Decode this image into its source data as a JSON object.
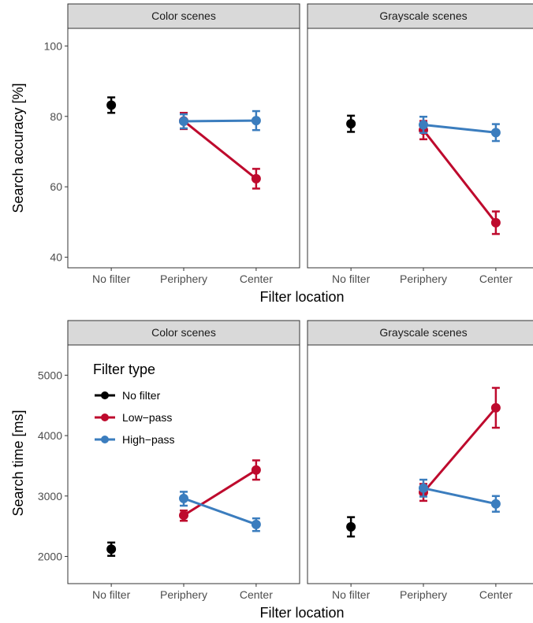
{
  "colors": {
    "no_filter": "#000000",
    "low_pass": "#BE0A2D",
    "high_pass": "#3B7DBE",
    "strip_bg": "#D9D9D9",
    "panel_border": "#333333"
  },
  "legend": {
    "title": "Filter type",
    "items": [
      {
        "label": "No filter",
        "color": "#000000"
      },
      {
        "label": "Low−pass",
        "color": "#BE0A2D"
      },
      {
        "label": "High−pass",
        "color": "#3B7DBE"
      }
    ]
  },
  "chart_data": [
    {
      "type": "line",
      "title": "",
      "xlabel": "Filter location",
      "ylabel": "Search accuracy [%]",
      "categories": [
        "No filter",
        "Periphery",
        "Center"
      ],
      "ylim": [
        37,
        105
      ],
      "yticks": [
        "40",
        "60",
        "80",
        "100"
      ],
      "facets": [
        {
          "label": "Color scenes",
          "series": [
            {
              "name": "No filter",
              "color": "#000000",
              "points": [
                {
                  "x": "No filter",
                  "y": 83.2,
                  "lo": 81.0,
                  "hi": 85.4
                }
              ]
            },
            {
              "name": "Low−pass",
              "color": "#BE0A2D",
              "points": [
                {
                  "x": "Periphery",
                  "y": 78.7,
                  "lo": 76.4,
                  "hi": 81.0
                },
                {
                  "x": "Center",
                  "y": 62.3,
                  "lo": 59.5,
                  "hi": 65.1
                }
              ]
            },
            {
              "name": "High−pass",
              "color": "#3B7DBE",
              "points": [
                {
                  "x": "Periphery",
                  "y": 78.6,
                  "lo": 76.6,
                  "hi": 80.6
                },
                {
                  "x": "Center",
                  "y": 78.8,
                  "lo": 76.1,
                  "hi": 81.5
                }
              ]
            }
          ]
        },
        {
          "label": "Grayscale scenes",
          "series": [
            {
              "name": "No filter",
              "color": "#000000",
              "points": [
                {
                  "x": "No filter",
                  "y": 77.9,
                  "lo": 75.6,
                  "hi": 80.2
                }
              ]
            },
            {
              "name": "Low−pass",
              "color": "#BE0A2D",
              "points": [
                {
                  "x": "Periphery",
                  "y": 76.1,
                  "lo": 73.5,
                  "hi": 78.7
                },
                {
                  "x": "Center",
                  "y": 49.8,
                  "lo": 46.6,
                  "hi": 53.0
                }
              ]
            },
            {
              "name": "High−pass",
              "color": "#3B7DBE",
              "points": [
                {
                  "x": "Periphery",
                  "y": 77.6,
                  "lo": 75.3,
                  "hi": 79.9
                },
                {
                  "x": "Center",
                  "y": 75.4,
                  "lo": 73.0,
                  "hi": 77.8
                }
              ]
            }
          ]
        }
      ]
    },
    {
      "type": "line",
      "title": "",
      "xlabel": "Filter location",
      "ylabel": "Search time [ms]",
      "categories": [
        "No filter",
        "Periphery",
        "Center"
      ],
      "ylim": [
        1550,
        5500
      ],
      "yticks": [
        "2000",
        "3000",
        "4000",
        "5000"
      ],
      "facets": [
        {
          "label": "Color scenes",
          "series": [
            {
              "name": "No filter",
              "color": "#000000",
              "points": [
                {
                  "x": "No filter",
                  "y": 2120,
                  "lo": 2010,
                  "hi": 2230
                }
              ]
            },
            {
              "name": "Low−pass",
              "color": "#BE0A2D",
              "points": [
                {
                  "x": "Periphery",
                  "y": 2680,
                  "lo": 2590,
                  "hi": 2760
                },
                {
                  "x": "Center",
                  "y": 3430,
                  "lo": 3270,
                  "hi": 3590
                }
              ]
            },
            {
              "name": "High−pass",
              "color": "#3B7DBE",
              "points": [
                {
                  "x": "Periphery",
                  "y": 2960,
                  "lo": 2840,
                  "hi": 3070
                },
                {
                  "x": "Center",
                  "y": 2530,
                  "lo": 2420,
                  "hi": 2630
                }
              ]
            }
          ]
        },
        {
          "label": "Grayscale scenes",
          "series": [
            {
              "name": "No filter",
              "color": "#000000",
              "points": [
                {
                  "x": "No filter",
                  "y": 2490,
                  "lo": 2330,
                  "hi": 2650
                }
              ]
            },
            {
              "name": "Low−pass",
              "color": "#BE0A2D",
              "points": [
                {
                  "x": "Periphery",
                  "y": 3060,
                  "lo": 2920,
                  "hi": 3200
                },
                {
                  "x": "Center",
                  "y": 4460,
                  "lo": 4130,
                  "hi": 4790
                }
              ]
            },
            {
              "name": "High−pass",
              "color": "#3B7DBE",
              "points": [
                {
                  "x": "Periphery",
                  "y": 3130,
                  "lo": 2990,
                  "hi": 3270
                },
                {
                  "x": "Center",
                  "y": 2870,
                  "lo": 2740,
                  "hi": 3000
                }
              ]
            }
          ]
        }
      ]
    }
  ]
}
